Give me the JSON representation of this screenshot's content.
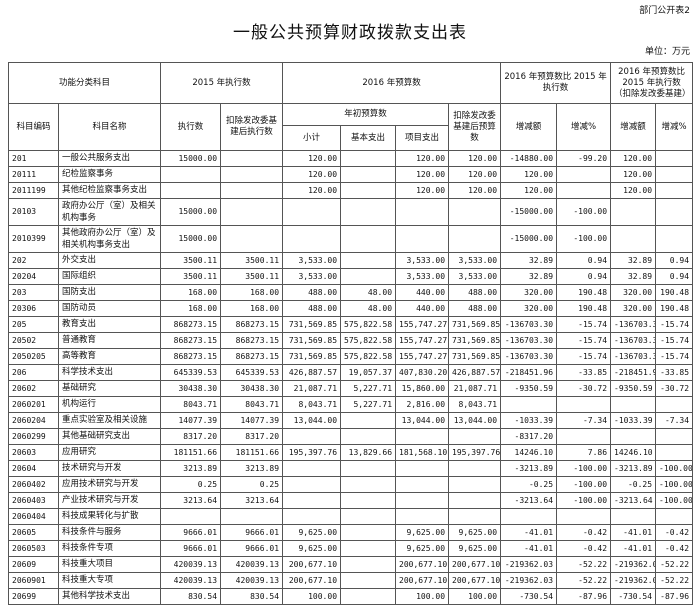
{
  "header": {
    "form_no": "部门公开表2",
    "title": "一般公共预算财政拨款支出表",
    "unit": "单位：万元"
  },
  "columns": {
    "group_func": "功能分类科目",
    "group_2015": "2015 年执行数",
    "group_2016": "2016 年预算数",
    "group_cmp1": "2016 年预算数比 2015 年执行数",
    "group_cmp2": "2016 年预算数比 2015 年执行数（扣除发改委基建）",
    "code": "科目编码",
    "name": "科目名称",
    "exec": "执行数",
    "exec_net": "扣除发改委基建后执行数",
    "initial": "年初预算数",
    "net_budget": "扣除发改委基建后预算数",
    "subtotal": "小计",
    "basic": "基本支出",
    "project": "项目支出",
    "diff1": "增减额",
    "pct1": "增减%",
    "diff2": "增减额",
    "pct2": "增减%"
  },
  "rows": [
    [
      "201",
      "一般公共服务支出",
      "15000.00",
      "",
      "120.00",
      "",
      "120.00",
      "120.00",
      "-14880.00",
      "-99.20",
      "120.00",
      ""
    ],
    [
      "20111",
      "纪检监察事务",
      "",
      "",
      "120.00",
      "",
      "120.00",
      "120.00",
      "120.00",
      "",
      "120.00",
      ""
    ],
    [
      "2011199",
      "其他纪检监察事务支出",
      "",
      "",
      "120.00",
      "",
      "120.00",
      "120.00",
      "120.00",
      "",
      "120.00",
      ""
    ],
    [
      "20103",
      "政府办公厅（室）及相关机构事务",
      "15000.00",
      "",
      "",
      "",
      "",
      "",
      "-15000.00",
      "-100.00",
      "",
      ""
    ],
    [
      "2010399",
      "其他政府办公厅（室）及相关机构事务支出",
      "15000.00",
      "",
      "",
      "",
      "",
      "",
      "-15000.00",
      "-100.00",
      "",
      ""
    ],
    [
      "202",
      "外交支出",
      "3500.11",
      "3500.11",
      "3,533.00",
      "",
      "3,533.00",
      "3,533.00",
      "32.89",
      "0.94",
      "32.89",
      "0.94"
    ],
    [
      "20204",
      "国际组织",
      "3500.11",
      "3500.11",
      "3,533.00",
      "",
      "3,533.00",
      "3,533.00",
      "32.89",
      "0.94",
      "32.89",
      "0.94"
    ],
    [
      "203",
      "国防支出",
      "168.00",
      "168.00",
      "488.00",
      "48.00",
      "440.00",
      "488.00",
      "320.00",
      "190.48",
      "320.00",
      "190.48"
    ],
    [
      "20306",
      "国防动员",
      "168.00",
      "168.00",
      "488.00",
      "48.00",
      "440.00",
      "488.00",
      "320.00",
      "190.48",
      "320.00",
      "190.48"
    ],
    [
      "205",
      "教育支出",
      "868273.15",
      "868273.15",
      "731,569.85",
      "575,822.58",
      "155,747.27",
      "731,569.85",
      "-136703.30",
      "-15.74",
      "-136703.30",
      "-15.74"
    ],
    [
      "20502",
      "普通教育",
      "868273.15",
      "868273.15",
      "731,569.85",
      "575,822.58",
      "155,747.27",
      "731,569.85",
      "-136703.30",
      "-15.74",
      "-136703.30",
      "-15.74"
    ],
    [
      "2050205",
      "高等教育",
      "868273.15",
      "868273.15",
      "731,569.85",
      "575,822.58",
      "155,747.27",
      "731,569.85",
      "-136703.30",
      "-15.74",
      "-136703.30",
      "-15.74"
    ],
    [
      "206",
      "科学技术支出",
      "645339.53",
      "645339.53",
      "426,887.57",
      "19,057.37",
      "407,830.20",
      "426,887.57",
      "-218451.96",
      "-33.85",
      "-218451.96",
      "-33.85"
    ],
    [
      "20602",
      "基础研究",
      "30438.30",
      "30438.30",
      "21,087.71",
      "5,227.71",
      "15,860.00",
      "21,087.71",
      "-9350.59",
      "-30.72",
      "-9350.59",
      "-30.72"
    ],
    [
      "2060201",
      "机构运行",
      "8043.71",
      "8043.71",
      "8,043.71",
      "5,227.71",
      "2,816.00",
      "8,043.71",
      "",
      "",
      "",
      ""
    ],
    [
      "2060204",
      "重点实验室及相关设施",
      "14077.39",
      "14077.39",
      "13,044.00",
      "",
      "13,044.00",
      "13,044.00",
      "-1033.39",
      "-7.34",
      "-1033.39",
      "-7.34"
    ],
    [
      "2060299",
      "其他基础研究支出",
      "8317.20",
      "8317.20",
      "",
      "",
      "",
      "",
      "-8317.20",
      "",
      "",
      ""
    ],
    [
      "20603",
      "应用研究",
      "181151.66",
      "181151.66",
      "195,397.76",
      "13,829.66",
      "181,568.10",
      "195,397.76",
      "14246.10",
      "7.86",
      "14246.10",
      ""
    ],
    [
      "20604",
      "技术研究与开发",
      "3213.89",
      "3213.89",
      "",
      "",
      "",
      "",
      "-3213.89",
      "-100.00",
      "-3213.89",
      "-100.00"
    ],
    [
      "2060402",
      "应用技术研究与开发",
      "0.25",
      "0.25",
      "",
      "",
      "",
      "",
      "-0.25",
      "-100.00",
      "-0.25",
      "-100.00"
    ],
    [
      "2060403",
      "产业技术研究与开发",
      "3213.64",
      "3213.64",
      "",
      "",
      "",
      "",
      "-3213.64",
      "-100.00",
      "-3213.64",
      "-100.00"
    ],
    [
      "2060404",
      "科技成果转化与扩散",
      "",
      "",
      "",
      "",
      "",
      "",
      "",
      "",
      "",
      ""
    ],
    [
      "20605",
      "科技条件与服务",
      "9666.01",
      "9666.01",
      "9,625.00",
      "",
      "9,625.00",
      "9,625.00",
      "-41.01",
      "-0.42",
      "-41.01",
      "-0.42"
    ],
    [
      "2060503",
      "科技条件专项",
      "9666.01",
      "9666.01",
      "9,625.00",
      "",
      "9,625.00",
      "9,625.00",
      "-41.01",
      "-0.42",
      "-41.01",
      "-0.42"
    ],
    [
      "20609",
      "科技重大项目",
      "420039.13",
      "420039.13",
      "200,677.10",
      "",
      "200,677.10",
      "200,677.10",
      "-219362.03",
      "-52.22",
      "-219362.03",
      "-52.22"
    ],
    [
      "2060901",
      "科技重大专项",
      "420039.13",
      "420039.13",
      "200,677.10",
      "",
      "200,677.10",
      "200,677.10",
      "-219362.03",
      "-52.22",
      "-219362.03",
      "-52.22"
    ],
    [
      "20699",
      "其他科学技术支出",
      "830.54",
      "830.54",
      "100.00",
      "",
      "100.00",
      "100.00",
      "-730.54",
      "-87.96",
      "-730.54",
      "-87.96"
    ]
  ]
}
